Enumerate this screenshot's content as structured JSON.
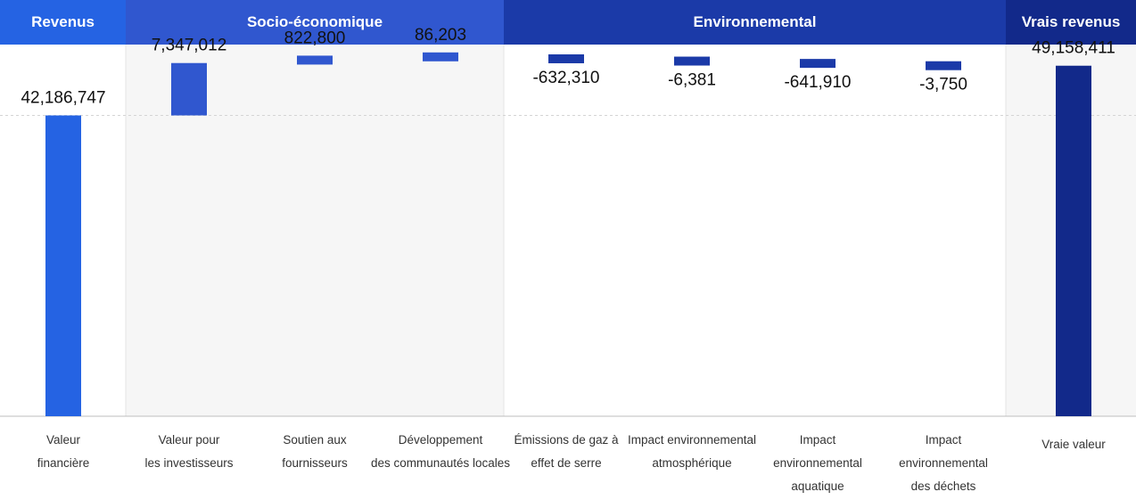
{
  "chart_data": {
    "type": "waterfall",
    "groups": [
      {
        "name": "Revenus",
        "color": "#2563e3"
      },
      {
        "name": "Socio-économique",
        "color": "#3057cf"
      },
      {
        "name": "Environnemental",
        "color": "#1b3aa8"
      },
      {
        "name": "Vrais revenus",
        "color": "#12298a"
      }
    ],
    "categories": [
      {
        "lines": [
          "Valeur",
          "financière"
        ],
        "group": 0
      },
      {
        "lines": [
          "Valeur pour",
          "les investisseurs"
        ],
        "group": 1
      },
      {
        "lines": [
          "Soutien aux",
          "fournisseurs"
        ],
        "group": 1
      },
      {
        "lines": [
          "Développement",
          "des communautés locales"
        ],
        "group": 1
      },
      {
        "lines": [
          "Émissions de gaz à",
          "effet de serre"
        ],
        "group": 2
      },
      {
        "lines": [
          "Impact environnemental",
          "atmosphérique"
        ],
        "group": 2
      },
      {
        "lines": [
          "Impact",
          "environnemental",
          "aquatique"
        ],
        "group": 2
      },
      {
        "lines": [
          "Impact",
          "environnemental",
          "des déchets"
        ],
        "group": 2
      },
      {
        "lines": [
          "Vraie valeur"
        ],
        "group": 3
      }
    ],
    "values": [
      42186747,
      7347012,
      822800,
      86203,
      -632310,
      -6381,
      -641910,
      -3750,
      49158411
    ],
    "value_labels": [
      "42,186,747",
      "7,347,012",
      "822,800",
      "86,203",
      "-632,310",
      "-6,381",
      "-641,910",
      "-3,750",
      "49,158,411"
    ],
    "measures": [
      "total",
      "relative",
      "relative",
      "relative",
      "relative",
      "relative",
      "relative",
      "relative",
      "total"
    ],
    "bar_colors": [
      "#2563e3",
      "#3057cf",
      "#3057cf",
      "#3057cf",
      "#1b3aa8",
      "#1b3aa8",
      "#1b3aa8",
      "#1b3aa8",
      "#12298a"
    ],
    "note": "",
    "title": "",
    "xlabel": "",
    "ylabel": "",
    "grid": false,
    "legend": "none"
  }
}
